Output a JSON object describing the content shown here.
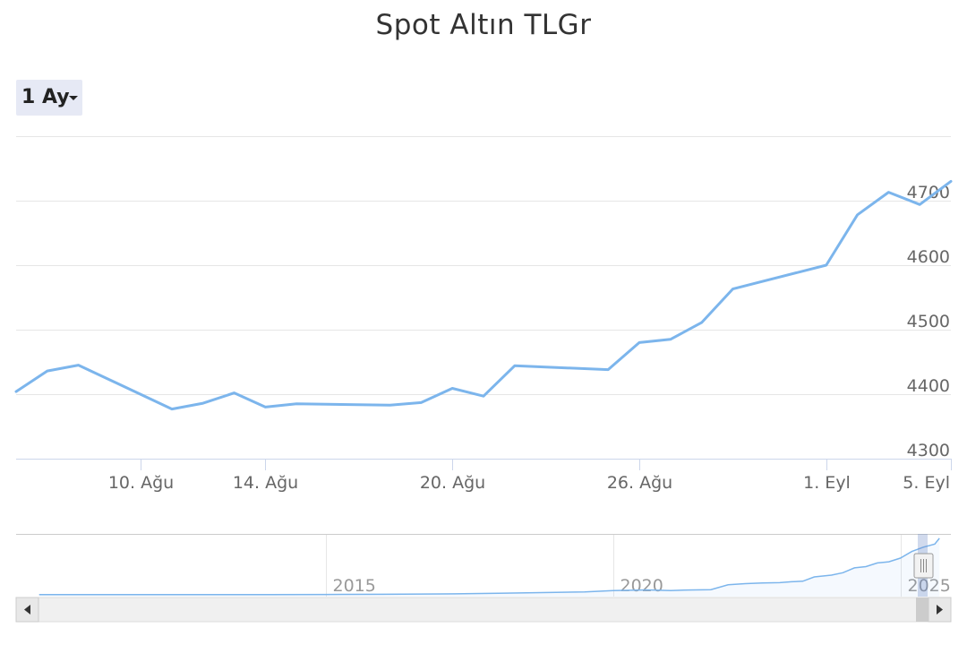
{
  "chart_data": {
    "type": "line",
    "title": "Spot Altın TLGr",
    "range_selector": {
      "selected": "1 Ay"
    },
    "series": [
      {
        "name": "Spot Altın TLGr",
        "color": "#7cb5ec",
        "points": [
          {
            "x": "2025-08-06",
            "y": 4404
          },
          {
            "x": "2025-08-07",
            "y": 4436
          },
          {
            "x": "2025-08-08",
            "y": 4445
          },
          {
            "x": "2025-08-11",
            "y": 4377
          },
          {
            "x": "2025-08-12",
            "y": 4386
          },
          {
            "x": "2025-08-13",
            "y": 4402
          },
          {
            "x": "2025-08-14",
            "y": 4380
          },
          {
            "x": "2025-08-15",
            "y": 4385
          },
          {
            "x": "2025-08-18",
            "y": 4383
          },
          {
            "x": "2025-08-19",
            "y": 4387
          },
          {
            "x": "2025-08-20",
            "y": 4409
          },
          {
            "x": "2025-08-21",
            "y": 4397
          },
          {
            "x": "2025-08-22",
            "y": 4444
          },
          {
            "x": "2025-08-25",
            "y": 4438
          },
          {
            "x": "2025-08-26",
            "y": 4480
          },
          {
            "x": "2025-08-27",
            "y": 4485
          },
          {
            "x": "2025-08-28",
            "y": 4511
          },
          {
            "x": "2025-08-29",
            "y": 4563
          },
          {
            "x": "2025-09-01",
            "y": 4600
          },
          {
            "x": "2025-09-02",
            "y": 4678
          },
          {
            "x": "2025-09-03",
            "y": 4713
          },
          {
            "x": "2025-09-04",
            "y": 4694
          },
          {
            "x": "2025-09-05",
            "y": 4730
          }
        ]
      }
    ],
    "x_ticks": [
      {
        "date": "2025-08-10",
        "label": "10. Ağu"
      },
      {
        "date": "2025-08-14",
        "label": "14. Ağu"
      },
      {
        "date": "2025-08-20",
        "label": "20. Ağu"
      },
      {
        "date": "2025-08-26",
        "label": "26. Ağu"
      },
      {
        "date": "2025-09-01",
        "label": "1. Eyl"
      },
      {
        "date": "2025-09-05",
        "label": "5. Eyl"
      }
    ],
    "y_ticks": [
      4300,
      4400,
      4500,
      4600,
      4700
    ],
    "xlim": [
      "2025-08-06",
      "2025-09-05"
    ],
    "ylim": [
      4300,
      4800
    ],
    "grid": true,
    "navigator": {
      "x_ticks": [
        "2015",
        "2020",
        "2025"
      ],
      "series": [
        {
          "x": 2010.0,
          "y": 90
        },
        {
          "x": 2011.0,
          "y": 92
        },
        {
          "x": 2012.0,
          "y": 95
        },
        {
          "x": 2013.0,
          "y": 85
        },
        {
          "x": 2014.0,
          "y": 88
        },
        {
          "x": 2015.0,
          "y": 100
        },
        {
          "x": 2016.0,
          "y": 120
        },
        {
          "x": 2017.0,
          "y": 150
        },
        {
          "x": 2018.0,
          "y": 200
        },
        {
          "x": 2019.0,
          "y": 280
        },
        {
          "x": 2019.5,
          "y": 320
        },
        {
          "x": 2020.0,
          "y": 420
        },
        {
          "x": 2020.6,
          "y": 480
        },
        {
          "x": 2021.0,
          "y": 430
        },
        {
          "x": 2021.3,
          "y": 470
        },
        {
          "x": 2021.7,
          "y": 500
        },
        {
          "x": 2022.0,
          "y": 900
        },
        {
          "x": 2022.3,
          "y": 1000
        },
        {
          "x": 2022.6,
          "y": 1050
        },
        {
          "x": 2022.9,
          "y": 1080
        },
        {
          "x": 2023.1,
          "y": 1150
        },
        {
          "x": 2023.3,
          "y": 1200
        },
        {
          "x": 2023.5,
          "y": 1550
        },
        {
          "x": 2023.8,
          "y": 1700
        },
        {
          "x": 2024.0,
          "y": 1900
        },
        {
          "x": 2024.2,
          "y": 2300
        },
        {
          "x": 2024.4,
          "y": 2400
        },
        {
          "x": 2024.6,
          "y": 2700
        },
        {
          "x": 2024.8,
          "y": 2800
        },
        {
          "x": 2025.0,
          "y": 3100
        },
        {
          "x": 2025.2,
          "y": 3650
        },
        {
          "x": 2025.4,
          "y": 4000
        },
        {
          "x": 2025.6,
          "y": 4250
        },
        {
          "x": 2025.68,
          "y": 4730
        }
      ]
    }
  }
}
